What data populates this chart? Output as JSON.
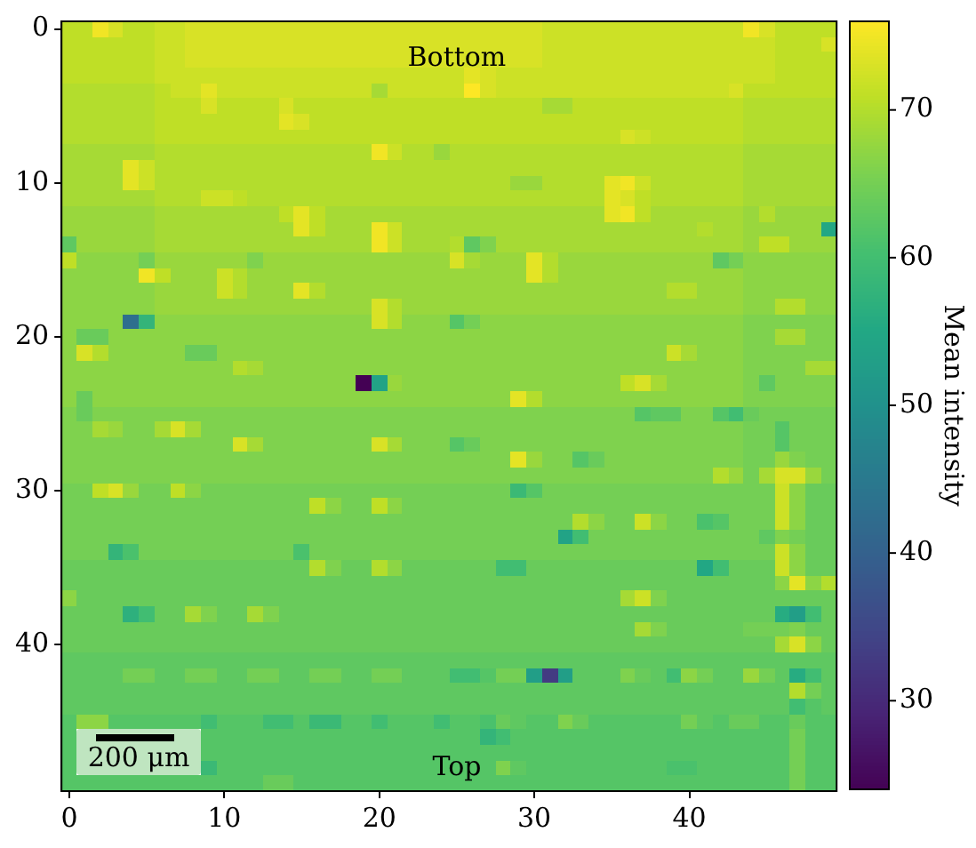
{
  "chart_data": {
    "type": "heatmap",
    "categories": [
      "0",
      null,
      null,
      null,
      null,
      null,
      null,
      null,
      null,
      null,
      "10",
      null,
      null,
      null,
      null,
      null,
      null,
      null,
      null,
      null,
      "20",
      null,
      null,
      null,
      null,
      null,
      null,
      null,
      null,
      null,
      "30",
      null,
      null,
      null,
      null,
      null,
      null,
      null,
      null,
      null,
      "40",
      null,
      null,
      null,
      null,
      null,
      null,
      null,
      null,
      null
    ],
    "y_categories": [
      "0",
      null,
      null,
      null,
      null,
      null,
      null,
      null,
      null,
      null,
      "10",
      null,
      null,
      null,
      null,
      null,
      null,
      null,
      null,
      null,
      "20",
      null,
      null,
      null,
      null,
      null,
      null,
      null,
      null,
      null,
      "30",
      null,
      null,
      null,
      null,
      null,
      null,
      null,
      null,
      null,
      "40",
      null,
      null,
      null,
      null,
      null,
      null,
      null,
      null,
      null
    ],
    "cells": [
      [
        71,
        71,
        75,
        73,
        71,
        71,
        72,
        72,
        73,
        73,
        73,
        73,
        73,
        73,
        73,
        73,
        73,
        73,
        73,
        73,
        73,
        73,
        73,
        73,
        73,
        73,
        73,
        73,
        73,
        73,
        73,
        72,
        72,
        72,
        72,
        72,
        72,
        72,
        72,
        72,
        72,
        72,
        72,
        72,
        75,
        73,
        71,
        71,
        71,
        71
      ],
      [
        71,
        71,
        71,
        71,
        71,
        71,
        72,
        72,
        73,
        73,
        73,
        73,
        73,
        73,
        73,
        73,
        73,
        73,
        73,
        73,
        73,
        73,
        73,
        73,
        73,
        73,
        73,
        73,
        73,
        73,
        73,
        72,
        72,
        72,
        72,
        72,
        72,
        72,
        72,
        72,
        72,
        72,
        72,
        72,
        72,
        72,
        71,
        71,
        71,
        73
      ],
      [
        71,
        71,
        71,
        71,
        71,
        71,
        72,
        72,
        73,
        73,
        73,
        73,
        73,
        73,
        73,
        73,
        73,
        73,
        73,
        73,
        73,
        73,
        73,
        73,
        73,
        73,
        73,
        73,
        73,
        73,
        73,
        72,
        72,
        72,
        72,
        72,
        72,
        72,
        72,
        72,
        72,
        72,
        72,
        72,
        72,
        72,
        71,
        71,
        71,
        71
      ],
      [
        71,
        71,
        71,
        71,
        71,
        71,
        72,
        72,
        72,
        72,
        72,
        72,
        72,
        72,
        72,
        72,
        72,
        72,
        72,
        72,
        72,
        72,
        72,
        72,
        72,
        72,
        74,
        73,
        72,
        72,
        72,
        72,
        72,
        72,
        72,
        72,
        72,
        72,
        72,
        72,
        72,
        72,
        72,
        72,
        72,
        72,
        71,
        71,
        71,
        71
      ],
      [
        70,
        70,
        70,
        70,
        70,
        70,
        71,
        72,
        72,
        74,
        72,
        72,
        72,
        72,
        72,
        72,
        72,
        72,
        72,
        72,
        69,
        72,
        72,
        72,
        72,
        72,
        76,
        73,
        72,
        72,
        72,
        72,
        72,
        72,
        72,
        72,
        72,
        72,
        72,
        72,
        72,
        72,
        72,
        73,
        71,
        71,
        71,
        71,
        71,
        71
      ],
      [
        70,
        70,
        70,
        70,
        70,
        70,
        71,
        71,
        71,
        73,
        71,
        71,
        71,
        71,
        73,
        71,
        71,
        71,
        71,
        71,
        71,
        71,
        71,
        71,
        71,
        71,
        71,
        71,
        71,
        71,
        71,
        69,
        69,
        71,
        71,
        71,
        71,
        71,
        71,
        71,
        71,
        71,
        71,
        71,
        70,
        70,
        70,
        70,
        70,
        70
      ],
      [
        70,
        70,
        70,
        70,
        70,
        70,
        71,
        71,
        71,
        71,
        71,
        71,
        71,
        71,
        74,
        73,
        71,
        71,
        71,
        71,
        71,
        71,
        71,
        71,
        71,
        71,
        71,
        71,
        71,
        71,
        71,
        71,
        71,
        71,
        71,
        71,
        71,
        71,
        71,
        71,
        71,
        71,
        71,
        71,
        70,
        70,
        70,
        70,
        70,
        70
      ],
      [
        70,
        70,
        70,
        70,
        70,
        70,
        71,
        71,
        71,
        71,
        71,
        71,
        71,
        71,
        71,
        71,
        71,
        71,
        71,
        71,
        71,
        71,
        71,
        71,
        71,
        71,
        71,
        71,
        71,
        71,
        71,
        71,
        71,
        71,
        71,
        71,
        73,
        72,
        71,
        71,
        71,
        71,
        71,
        71,
        70,
        70,
        70,
        70,
        70,
        70
      ],
      [
        69,
        69,
        69,
        69,
        69,
        69,
        70,
        70,
        70,
        70,
        70,
        70,
        70,
        70,
        70,
        70,
        70,
        70,
        70,
        70,
        75,
        72,
        70,
        70,
        68,
        70,
        70,
        70,
        70,
        70,
        70,
        70,
        70,
        70,
        70,
        70,
        70,
        70,
        70,
        70,
        70,
        70,
        70,
        70,
        69,
        69,
        69,
        69,
        69,
        69
      ],
      [
        69,
        69,
        69,
        69,
        74,
        72,
        70,
        70,
        70,
        70,
        70,
        70,
        70,
        70,
        70,
        70,
        70,
        70,
        70,
        70,
        70,
        70,
        70,
        70,
        70,
        70,
        70,
        70,
        70,
        70,
        70,
        70,
        70,
        70,
        70,
        70,
        70,
        70,
        70,
        70,
        70,
        70,
        70,
        70,
        69,
        69,
        69,
        69,
        69,
        69
      ],
      [
        69,
        69,
        69,
        69,
        74,
        72,
        70,
        70,
        70,
        70,
        70,
        70,
        70,
        70,
        70,
        70,
        70,
        70,
        70,
        70,
        70,
        70,
        70,
        70,
        70,
        70,
        70,
        70,
        70,
        68,
        68,
        70,
        70,
        70,
        70,
        74,
        75,
        72,
        70,
        70,
        70,
        70,
        70,
        70,
        69,
        69,
        69,
        69,
        69,
        69
      ],
      [
        69,
        69,
        69,
        69,
        69,
        69,
        70,
        70,
        70,
        72,
        72,
        71,
        70,
        70,
        70,
        70,
        70,
        70,
        70,
        70,
        70,
        70,
        70,
        70,
        70,
        70,
        70,
        70,
        70,
        70,
        70,
        70,
        70,
        70,
        70,
        74,
        73,
        71,
        70,
        70,
        70,
        70,
        70,
        70,
        69,
        69,
        69,
        69,
        69,
        69
      ],
      [
        68,
        68,
        68,
        68,
        68,
        68,
        69,
        69,
        69,
        69,
        69,
        69,
        69,
        69,
        71,
        74,
        71,
        69,
        69,
        69,
        69,
        69,
        69,
        69,
        69,
        69,
        69,
        69,
        69,
        69,
        69,
        69,
        69,
        69,
        69,
        74,
        75,
        71,
        69,
        69,
        69,
        69,
        69,
        69,
        68,
        70,
        68,
        68,
        68,
        68
      ],
      [
        68,
        68,
        68,
        68,
        68,
        68,
        69,
        69,
        69,
        69,
        69,
        69,
        69,
        69,
        69,
        74,
        71,
        69,
        69,
        69,
        75,
        72,
        69,
        69,
        69,
        69,
        69,
        69,
        69,
        69,
        69,
        69,
        69,
        69,
        69,
        69,
        69,
        69,
        69,
        69,
        69,
        70,
        69,
        69,
        68,
        68,
        68,
        68,
        68,
        55
      ],
      [
        63,
        68,
        68,
        68,
        68,
        68,
        69,
        69,
        69,
        69,
        69,
        69,
        69,
        69,
        69,
        69,
        69,
        69,
        69,
        69,
        75,
        72,
        69,
        69,
        69,
        70,
        63,
        66,
        69,
        69,
        69,
        69,
        69,
        69,
        69,
        69,
        69,
        69,
        69,
        69,
        69,
        69,
        69,
        69,
        68,
        71,
        71,
        68,
        68,
        68
      ],
      [
        71,
        67,
        67,
        67,
        67,
        65,
        68,
        68,
        68,
        68,
        68,
        68,
        66,
        68,
        68,
        68,
        68,
        68,
        68,
        68,
        68,
        68,
        68,
        68,
        68,
        73,
        69,
        68,
        68,
        68,
        74,
        70,
        68,
        68,
        68,
        68,
        68,
        68,
        68,
        68,
        68,
        68,
        63,
        65,
        67,
        67,
        67,
        67,
        67,
        67
      ],
      [
        67,
        67,
        67,
        67,
        67,
        75,
        71,
        68,
        68,
        68,
        72,
        70,
        68,
        68,
        68,
        68,
        68,
        68,
        68,
        68,
        68,
        68,
        68,
        68,
        68,
        68,
        68,
        68,
        68,
        68,
        74,
        70,
        68,
        68,
        68,
        68,
        68,
        68,
        68,
        68,
        68,
        68,
        68,
        68,
        67,
        67,
        67,
        67,
        67,
        67
      ],
      [
        67,
        67,
        67,
        67,
        67,
        67,
        68,
        68,
        68,
        68,
        72,
        70,
        68,
        68,
        68,
        74,
        70,
        68,
        68,
        68,
        68,
        68,
        68,
        68,
        68,
        68,
        68,
        68,
        68,
        68,
        68,
        68,
        68,
        68,
        68,
        68,
        68,
        68,
        68,
        70,
        70,
        68,
        68,
        68,
        67,
        67,
        67,
        67,
        67,
        67
      ],
      [
        67,
        67,
        67,
        67,
        67,
        67,
        68,
        68,
        68,
        68,
        68,
        68,
        68,
        68,
        68,
        68,
        68,
        68,
        68,
        68,
        73,
        70,
        68,
        68,
        68,
        68,
        68,
        68,
        68,
        68,
        68,
        68,
        68,
        68,
        68,
        68,
        68,
        68,
        68,
        68,
        68,
        68,
        68,
        68,
        67,
        67,
        70,
        70,
        67,
        67
      ],
      [
        67,
        67,
        67,
        67,
        43,
        58,
        67,
        67,
        67,
        67,
        67,
        67,
        67,
        67,
        67,
        67,
        67,
        67,
        67,
        67,
        73,
        70,
        67,
        67,
        67,
        62,
        65,
        67,
        67,
        67,
        67,
        67,
        67,
        67,
        67,
        67,
        67,
        67,
        67,
        67,
        67,
        67,
        67,
        67,
        66,
        66,
        66,
        66,
        66,
        66
      ],
      [
        67,
        64,
        64,
        67,
        67,
        67,
        67,
        67,
        67,
        67,
        67,
        67,
        67,
        67,
        67,
        67,
        67,
        67,
        67,
        67,
        67,
        67,
        67,
        67,
        67,
        67,
        67,
        67,
        67,
        67,
        67,
        67,
        67,
        67,
        67,
        67,
        67,
        67,
        67,
        67,
        67,
        67,
        67,
        67,
        66,
        66,
        69,
        69,
        66,
        66
      ],
      [
        67,
        73,
        70,
        67,
        67,
        67,
        67,
        67,
        64,
        64,
        67,
        67,
        67,
        67,
        67,
        67,
        67,
        67,
        67,
        67,
        67,
        67,
        67,
        67,
        67,
        67,
        67,
        67,
        67,
        67,
        67,
        67,
        67,
        67,
        67,
        67,
        67,
        67,
        67,
        72,
        69,
        67,
        67,
        67,
        66,
        66,
        66,
        66,
        66,
        66
      ],
      [
        67,
        67,
        67,
        67,
        67,
        67,
        67,
        67,
        67,
        67,
        67,
        70,
        69,
        67,
        67,
        67,
        67,
        67,
        67,
        67,
        67,
        67,
        67,
        67,
        67,
        67,
        67,
        67,
        67,
        67,
        67,
        67,
        67,
        67,
        67,
        67,
        67,
        67,
        67,
        67,
        67,
        67,
        67,
        67,
        66,
        66,
        66,
        66,
        69,
        69
      ],
      [
        67,
        67,
        67,
        67,
        67,
        67,
        67,
        67,
        67,
        67,
        67,
        67,
        67,
        67,
        67,
        67,
        67,
        67,
        67,
        24,
        54,
        68,
        67,
        67,
        67,
        67,
        67,
        67,
        67,
        67,
        67,
        67,
        67,
        67,
        67,
        67,
        71,
        73,
        69,
        67,
        67,
        67,
        67,
        67,
        66,
        63,
        66,
        66,
        66,
        66
      ],
      [
        67,
        64,
        67,
        67,
        67,
        67,
        67,
        67,
        67,
        67,
        67,
        67,
        67,
        67,
        67,
        67,
        67,
        67,
        67,
        67,
        67,
        67,
        67,
        67,
        67,
        67,
        67,
        67,
        67,
        74,
        70,
        67,
        67,
        67,
        67,
        67,
        67,
        67,
        67,
        67,
        67,
        67,
        67,
        67,
        66,
        66,
        66,
        66,
        66,
        66
      ],
      [
        66,
        64,
        66,
        66,
        66,
        66,
        66,
        66,
        66,
        66,
        66,
        66,
        66,
        66,
        66,
        66,
        66,
        66,
        66,
        66,
        66,
        66,
        66,
        66,
        66,
        66,
        66,
        66,
        66,
        66,
        66,
        66,
        66,
        66,
        66,
        66,
        66,
        62,
        63,
        63,
        66,
        66,
        62,
        60,
        64,
        65,
        65,
        65,
        65,
        65
      ],
      [
        66,
        66,
        69,
        68,
        66,
        66,
        69,
        73,
        69,
        66,
        66,
        66,
        66,
        66,
        66,
        66,
        66,
        66,
        66,
        66,
        66,
        66,
        66,
        66,
        66,
        66,
        66,
        66,
        66,
        66,
        66,
        66,
        66,
        66,
        66,
        66,
        66,
        66,
        66,
        66,
        66,
        66,
        66,
        66,
        65,
        65,
        62,
        65,
        65,
        65
      ],
      [
        66,
        66,
        66,
        66,
        66,
        66,
        66,
        66,
        66,
        66,
        66,
        73,
        69,
        66,
        66,
        66,
        66,
        66,
        66,
        66,
        73,
        69,
        66,
        66,
        66,
        62,
        64,
        66,
        66,
        66,
        66,
        66,
        66,
        66,
        66,
        66,
        66,
        66,
        66,
        66,
        66,
        66,
        66,
        66,
        65,
        65,
        62,
        65,
        65,
        65
      ],
      [
        66,
        66,
        66,
        66,
        66,
        66,
        66,
        66,
        66,
        66,
        66,
        66,
        66,
        66,
        66,
        66,
        66,
        66,
        66,
        66,
        66,
        66,
        66,
        66,
        66,
        66,
        66,
        66,
        66,
        74,
        68,
        66,
        66,
        62,
        64,
        66,
        66,
        66,
        66,
        66,
        66,
        66,
        66,
        66,
        65,
        65,
        68,
        66,
        65,
        65
      ],
      [
        66,
        66,
        66,
        66,
        66,
        66,
        66,
        66,
        66,
        66,
        66,
        66,
        66,
        66,
        66,
        66,
        66,
        66,
        66,
        66,
        66,
        66,
        66,
        66,
        66,
        66,
        66,
        66,
        66,
        66,
        66,
        66,
        66,
        66,
        66,
        66,
        66,
        66,
        66,
        66,
        66,
        66,
        70,
        68,
        65,
        69,
        73,
        73,
        68,
        65
      ],
      [
        65,
        65,
        71,
        73,
        68,
        65,
        65,
        71,
        67,
        65,
        65,
        65,
        65,
        65,
        65,
        65,
        65,
        65,
        65,
        65,
        65,
        65,
        65,
        65,
        65,
        65,
        65,
        65,
        65,
        59,
        62,
        65,
        65,
        65,
        65,
        65,
        65,
        65,
        65,
        65,
        65,
        65,
        65,
        65,
        65,
        65,
        72,
        67,
        64,
        64
      ],
      [
        65,
        65,
        65,
        65,
        65,
        65,
        65,
        65,
        65,
        65,
        65,
        65,
        65,
        65,
        65,
        65,
        71,
        67,
        65,
        65,
        71,
        67,
        65,
        65,
        65,
        65,
        65,
        65,
        65,
        65,
        65,
        65,
        65,
        65,
        65,
        65,
        65,
        65,
        65,
        65,
        65,
        65,
        65,
        65,
        65,
        65,
        72,
        67,
        64,
        64
      ],
      [
        65,
        65,
        65,
        65,
        65,
        65,
        65,
        65,
        65,
        65,
        65,
        65,
        65,
        65,
        65,
        65,
        65,
        65,
        65,
        65,
        65,
        65,
        65,
        65,
        65,
        65,
        65,
        65,
        65,
        65,
        65,
        65,
        65,
        70,
        67,
        65,
        65,
        72,
        67,
        65,
        65,
        61,
        62,
        65,
        65,
        65,
        72,
        67,
        64,
        64
      ],
      [
        65,
        65,
        65,
        65,
        65,
        65,
        65,
        65,
        65,
        65,
        65,
        65,
        65,
        65,
        65,
        65,
        65,
        65,
        65,
        65,
        65,
        65,
        65,
        65,
        65,
        65,
        65,
        65,
        65,
        65,
        65,
        65,
        54,
        60,
        65,
        65,
        65,
        65,
        65,
        65,
        65,
        65,
        65,
        65,
        65,
        63,
        66,
        65,
        64,
        64
      ],
      [
        65,
        65,
        65,
        58,
        61,
        65,
        65,
        65,
        65,
        65,
        65,
        65,
        65,
        65,
        65,
        61,
        65,
        65,
        65,
        65,
        65,
        65,
        65,
        65,
        65,
        65,
        65,
        65,
        65,
        65,
        65,
        65,
        65,
        65,
        65,
        65,
        65,
        65,
        65,
        65,
        65,
        65,
        65,
        65,
        65,
        65,
        72,
        67,
        64,
        64
      ],
      [
        64,
        64,
        64,
        64,
        64,
        64,
        64,
        64,
        64,
        64,
        64,
        64,
        64,
        64,
        64,
        64,
        70,
        66,
        64,
        64,
        70,
        67,
        64,
        64,
        64,
        64,
        64,
        64,
        60,
        60,
        64,
        64,
        64,
        64,
        64,
        64,
        64,
        64,
        64,
        64,
        64,
        55,
        60,
        64,
        64,
        64,
        72,
        67,
        64,
        64
      ],
      [
        64,
        64,
        64,
        64,
        64,
        64,
        64,
        64,
        64,
        64,
        64,
        64,
        64,
        64,
        64,
        64,
        64,
        64,
        64,
        64,
        64,
        64,
        64,
        64,
        64,
        64,
        64,
        64,
        64,
        64,
        64,
        64,
        64,
        64,
        64,
        64,
        64,
        64,
        64,
        64,
        64,
        64,
        64,
        64,
        64,
        64,
        67,
        74,
        67,
        70
      ],
      [
        67,
        64,
        64,
        64,
        64,
        64,
        64,
        64,
        64,
        64,
        64,
        64,
        64,
        64,
        64,
        64,
        64,
        64,
        64,
        64,
        64,
        64,
        64,
        64,
        64,
        64,
        64,
        64,
        64,
        64,
        64,
        64,
        64,
        64,
        64,
        64,
        69,
        72,
        66,
        64,
        64,
        64,
        64,
        64,
        64,
        64,
        64,
        64,
        64,
        64
      ],
      [
        64,
        64,
        64,
        64,
        57,
        60,
        64,
        64,
        69,
        66,
        64,
        64,
        69,
        66,
        64,
        64,
        64,
        64,
        64,
        64,
        64,
        64,
        64,
        64,
        64,
        64,
        64,
        64,
        64,
        64,
        64,
        64,
        64,
        64,
        64,
        64,
        64,
        64,
        64,
        64,
        64,
        64,
        64,
        64,
        64,
        64,
        56,
        53,
        60,
        64
      ],
      [
        64,
        64,
        64,
        64,
        64,
        64,
        64,
        64,
        64,
        64,
        64,
        64,
        64,
        64,
        64,
        64,
        64,
        64,
        64,
        64,
        64,
        64,
        64,
        64,
        64,
        64,
        64,
        64,
        64,
        64,
        64,
        64,
        64,
        64,
        64,
        64,
        64,
        69,
        66,
        64,
        64,
        64,
        64,
        64,
        65,
        65,
        65,
        66,
        64,
        64
      ],
      [
        64,
        64,
        64,
        64,
        64,
        64,
        64,
        64,
        64,
        64,
        64,
        64,
        64,
        64,
        64,
        64,
        64,
        64,
        64,
        64,
        64,
        64,
        64,
        64,
        64,
        64,
        64,
        64,
        64,
        64,
        64,
        64,
        64,
        64,
        64,
        64,
        64,
        64,
        64,
        64,
        64,
        64,
        64,
        64,
        64,
        64,
        69,
        73,
        67,
        64
      ],
      [
        63,
        63,
        63,
        63,
        63,
        63,
        63,
        63,
        63,
        63,
        63,
        63,
        63,
        63,
        63,
        63,
        63,
        63,
        63,
        63,
        63,
        63,
        63,
        63,
        63,
        63,
        63,
        63,
        63,
        63,
        63,
        63,
        63,
        63,
        63,
        63,
        63,
        63,
        63,
        63,
        63,
        63,
        63,
        63,
        63,
        63,
        63,
        63,
        63,
        63
      ],
      [
        63,
        63,
        63,
        63,
        65,
        65,
        63,
        63,
        65,
        65,
        63,
        63,
        65,
        65,
        63,
        63,
        65,
        65,
        63,
        63,
        65,
        65,
        63,
        63,
        63,
        60,
        60,
        62,
        65,
        65,
        53,
        33,
        53,
        63,
        63,
        63,
        66,
        64,
        63,
        60,
        67,
        65,
        63,
        63,
        68,
        65,
        63,
        56,
        60,
        63
      ],
      [
        63,
        63,
        63,
        63,
        63,
        63,
        63,
        63,
        63,
        63,
        63,
        63,
        63,
        63,
        63,
        63,
        63,
        63,
        63,
        63,
        63,
        63,
        63,
        63,
        63,
        63,
        63,
        63,
        63,
        63,
        63,
        63,
        63,
        63,
        63,
        63,
        63,
        63,
        63,
        63,
        63,
        63,
        63,
        63,
        63,
        63,
        63,
        70,
        65,
        63
      ],
      [
        63,
        63,
        63,
        63,
        63,
        63,
        63,
        63,
        63,
        63,
        63,
        63,
        63,
        63,
        63,
        63,
        63,
        63,
        63,
        63,
        63,
        63,
        63,
        63,
        63,
        63,
        63,
        63,
        63,
        63,
        63,
        63,
        63,
        63,
        63,
        63,
        63,
        63,
        63,
        63,
        63,
        63,
        63,
        63,
        63,
        63,
        63,
        60,
        62,
        63
      ],
      [
        62,
        67,
        67,
        62,
        62,
        62,
        62,
        62,
        62,
        60,
        62,
        62,
        62,
        60,
        60,
        62,
        59,
        59,
        62,
        62,
        60,
        62,
        62,
        62,
        60,
        62,
        62,
        61,
        64,
        63,
        62,
        62,
        66,
        64,
        62,
        62,
        62,
        62,
        62,
        62,
        65,
        63,
        62,
        64,
        64,
        62,
        62,
        64,
        62,
        62
      ],
      [
        62,
        null,
        null,
        null,
        null,
        null,
        null,
        null,
        null,
        62,
        62,
        62,
        62,
        62,
        62,
        62,
        62,
        62,
        62,
        62,
        62,
        62,
        62,
        62,
        62,
        62,
        62,
        58,
        60,
        62,
        62,
        62,
        62,
        62,
        62,
        62,
        62,
        62,
        62,
        62,
        62,
        62,
        62,
        62,
        62,
        62,
        62,
        65,
        62,
        62
      ],
      [
        62,
        null,
        null,
        null,
        null,
        null,
        null,
        null,
        null,
        62,
        62,
        62,
        62,
        62,
        62,
        62,
        62,
        62,
        62,
        62,
        62,
        62,
        62,
        62,
        62,
        62,
        62,
        62,
        62,
        62,
        62,
        62,
        62,
        62,
        62,
        62,
        62,
        62,
        62,
        62,
        62,
        62,
        62,
        62,
        62,
        62,
        62,
        65,
        62,
        62
      ],
      [
        62,
        null,
        null,
        null,
        null,
        null,
        null,
        null,
        null,
        59,
        62,
        62,
        62,
        62,
        62,
        62,
        62,
        62,
        62,
        62,
        62,
        62,
        62,
        62,
        62,
        62,
        62,
        62,
        66,
        63,
        62,
        62,
        62,
        62,
        62,
        62,
        62,
        62,
        62,
        61,
        61,
        62,
        62,
        62,
        62,
        62,
        62,
        65,
        62,
        62
      ],
      [
        62,
        62,
        62,
        62,
        62,
        62,
        62,
        62,
        62,
        62,
        62,
        62,
        62,
        64,
        64,
        62,
        62,
        62,
        62,
        62,
        62,
        62,
        62,
        62,
        62,
        62,
        62,
        62,
        62,
        62,
        62,
        62,
        62,
        62,
        62,
        62,
        62,
        62,
        62,
        62,
        62,
        62,
        62,
        62,
        62,
        62,
        62,
        65,
        62,
        62
      ]
    ],
    "clim": [
      24,
      76
    ],
    "cticks": [
      30,
      40,
      50,
      60,
      70
    ],
    "clabel": "Mean intensity",
    "annotations": [
      "Bottom",
      "Top",
      "200 μm"
    ]
  }
}
